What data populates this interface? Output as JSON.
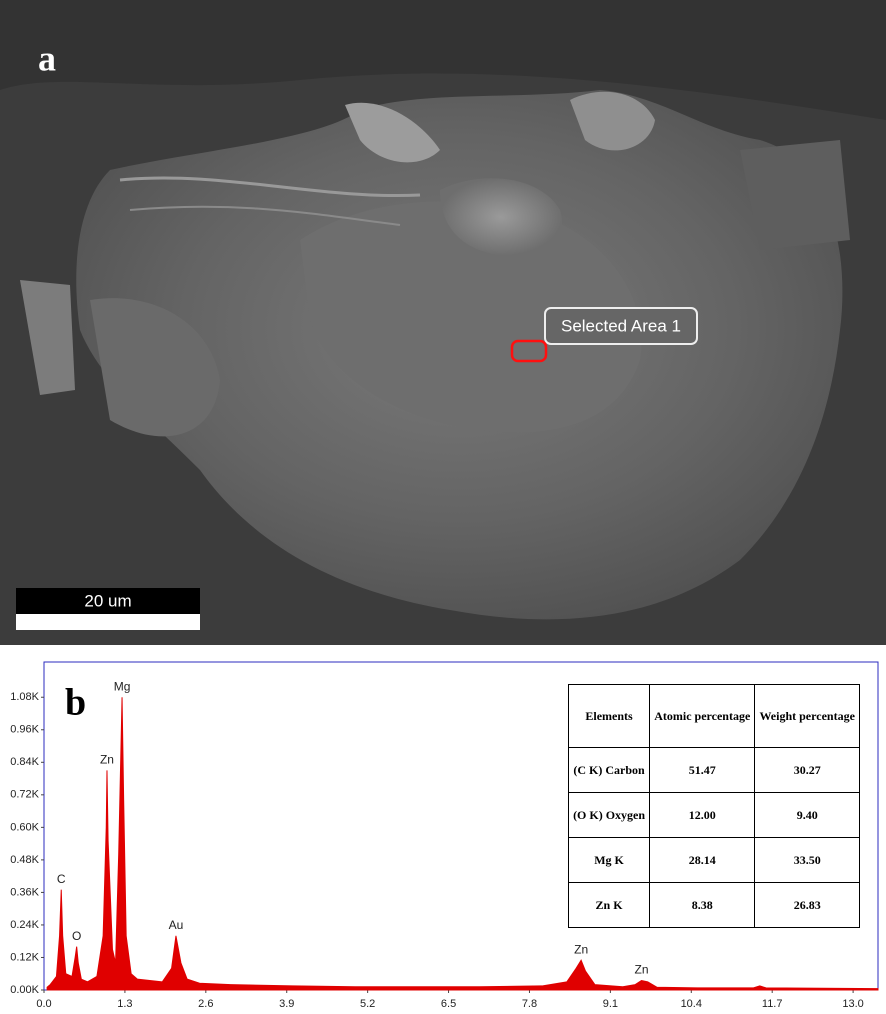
{
  "panel_a": {
    "label": "a",
    "annotation": "Selected Area 1",
    "scale_bar": "20 um"
  },
  "chart_data": {
    "type": "area",
    "label": "b",
    "color": "#e00000",
    "x": [
      0.05,
      0.1,
      0.2,
      0.25,
      0.277,
      0.3,
      0.35,
      0.45,
      0.5,
      0.525,
      0.55,
      0.6,
      0.7,
      0.85,
      0.95,
      1.0,
      1.012,
      1.03,
      1.1,
      1.15,
      1.2,
      1.254,
      1.28,
      1.32,
      1.4,
      1.5,
      1.7,
      1.9,
      2.05,
      2.12,
      2.2,
      2.3,
      2.5,
      3.0,
      4.0,
      5.0,
      6.0,
      7.0,
      8.0,
      8.4,
      8.55,
      8.63,
      8.7,
      8.85,
      9.3,
      9.5,
      9.6,
      9.7,
      9.85,
      10.5,
      11.4,
      11.5,
      11.6,
      13.4
    ],
    "values": [
      0.01,
      0.02,
      0.05,
      0.2,
      0.37,
      0.2,
      0.06,
      0.05,
      0.12,
      0.16,
      0.1,
      0.04,
      0.03,
      0.05,
      0.2,
      0.6,
      0.81,
      0.55,
      0.15,
      0.1,
      0.5,
      1.08,
      0.7,
      0.2,
      0.06,
      0.04,
      0.035,
      0.03,
      0.08,
      0.2,
      0.1,
      0.04,
      0.025,
      0.02,
      0.015,
      0.012,
      0.012,
      0.012,
      0.015,
      0.03,
      0.08,
      0.11,
      0.07,
      0.02,
      0.012,
      0.02,
      0.035,
      0.03,
      0.01,
      0.008,
      0.008,
      0.015,
      0.008,
      0.005
    ],
    "xlim": [
      0,
      13.4
    ],
    "ylim": [
      0,
      1.21
    ],
    "xticks": [
      {
        "value": 0,
        "label": "0.0"
      },
      1.3,
      2.6,
      3.9,
      5.2,
      6.5,
      7.8,
      9.1,
      10.4,
      11.7,
      {
        "value": 13,
        "label": "13.0"
      }
    ],
    "yticks": [
      {
        "value": 0,
        "label": "0.00K"
      },
      {
        "value": 0.12,
        "label": "0.12K"
      },
      {
        "value": 0.24,
        "label": "0.24K"
      },
      {
        "value": 0.36,
        "label": "0.36K"
      },
      {
        "value": 0.48,
        "label": "0.48K"
      },
      {
        "value": 0.6,
        "label": "0.60K"
      },
      {
        "value": 0.72,
        "label": "0.72K"
      },
      {
        "value": 0.84,
        "label": "0.84K"
      },
      {
        "value": 0.96,
        "label": "0.96K"
      },
      {
        "value": 1.08,
        "label": "1.08K"
      }
    ],
    "annotations": [
      {
        "text": "C",
        "x": 0.277,
        "y": 0.37
      },
      {
        "text": "O",
        "x": 0.525,
        "y": 0.16
      },
      {
        "text": "Zn",
        "x": 1.012,
        "y": 0.81
      },
      {
        "text": "Mg",
        "x": 1.254,
        "y": 1.08
      },
      {
        "text": "Au",
        "x": 2.12,
        "y": 0.2
      },
      {
        "text": "Zn",
        "x": 8.63,
        "y": 0.11
      },
      {
        "text": "Zn",
        "x": 9.6,
        "y": 0.035
      }
    ]
  },
  "table": {
    "header": [
      "Elements",
      "Atomic percentage",
      "Weight percentage"
    ],
    "rows": [
      [
        "(C K) Carbon",
        "51.47",
        "30.27"
      ],
      [
        "(O K) Oxygen",
        "12.00",
        "9.40"
      ],
      [
        "Mg K",
        "28.14",
        "33.50"
      ],
      [
        "Zn K",
        "8.38",
        "26.83"
      ]
    ]
  }
}
